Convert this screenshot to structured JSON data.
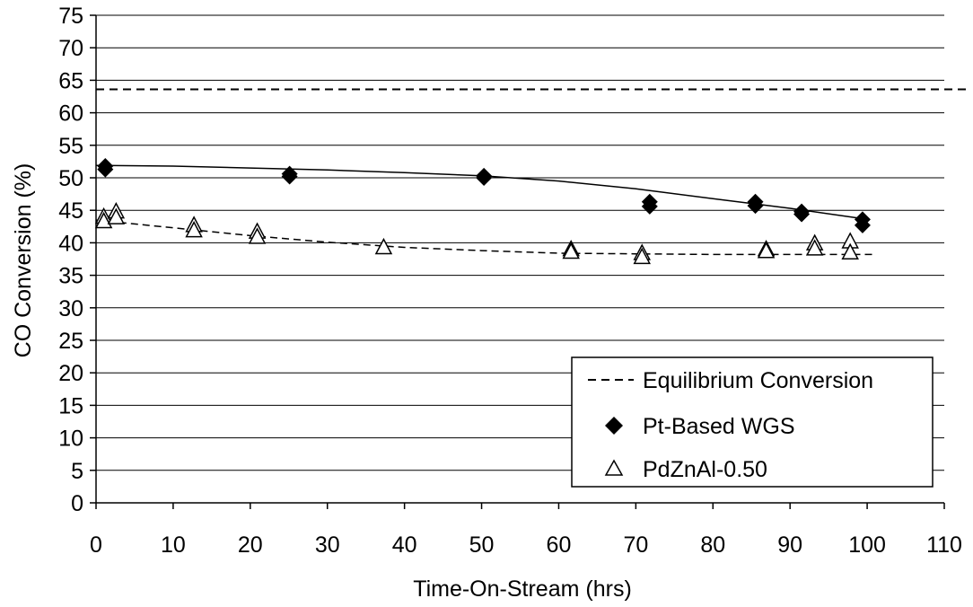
{
  "chart_data": {
    "type": "scatter",
    "xlabel": "Time-On-Stream  (hrs)",
    "ylabel": "CO Conversion (%)",
    "xlim": [
      0,
      110
    ],
    "ylim": [
      0,
      75
    ],
    "x_ticks": [
      0,
      10,
      20,
      30,
      40,
      50,
      60,
      70,
      80,
      90,
      100,
      110
    ],
    "y_ticks": [
      0,
      5,
      10,
      15,
      20,
      25,
      30,
      35,
      40,
      45,
      50,
      55,
      60,
      65,
      70,
      75
    ],
    "grid": "horizontal",
    "legend_position": "bottom-right",
    "equilibrium": {
      "name": "Equilibrium Conversion",
      "value": 63.6,
      "style": "dashed"
    },
    "series": [
      {
        "name": "Pt-Based WGS",
        "marker": "filled-diamond",
        "color": "#000000",
        "points": [
          [
            1.2,
            51.8
          ],
          [
            1.2,
            51.3
          ],
          [
            25.1,
            50.6
          ],
          [
            25.1,
            50.2
          ],
          [
            50.3,
            50.3
          ],
          [
            50.3,
            50.0
          ],
          [
            71.8,
            46.3
          ],
          [
            71.8,
            45.6
          ],
          [
            85.5,
            46.3
          ],
          [
            85.5,
            45.7
          ],
          [
            91.5,
            44.8
          ],
          [
            91.5,
            44.4
          ],
          [
            99.4,
            43.6
          ],
          [
            99.4,
            42.7
          ]
        ],
        "trend": [
          [
            0,
            51.9
          ],
          [
            10,
            51.8
          ],
          [
            20,
            51.5
          ],
          [
            30,
            51.2
          ],
          [
            40,
            50.8
          ],
          [
            50,
            50.3
          ],
          [
            60,
            49.5
          ],
          [
            70,
            48.3
          ],
          [
            80,
            46.8
          ],
          [
            90,
            45.3
          ],
          [
            100,
            43.6
          ]
        ],
        "trend_style": "solid"
      },
      {
        "name": "PdZnAl-0.50",
        "marker": "open-triangle",
        "color": "#000000",
        "points": [
          [
            1.0,
            44.0
          ],
          [
            1.0,
            43.3
          ],
          [
            2.6,
            44.8
          ],
          [
            2.6,
            43.9
          ],
          [
            12.7,
            42.7
          ],
          [
            12.7,
            41.9
          ],
          [
            20.9,
            41.7
          ],
          [
            20.9,
            40.9
          ],
          [
            37.3,
            39.3
          ],
          [
            61.6,
            39.0
          ],
          [
            61.6,
            38.6
          ],
          [
            70.8,
            38.4
          ],
          [
            70.8,
            37.8
          ],
          [
            86.9,
            39.0
          ],
          [
            86.9,
            38.7
          ],
          [
            93.2,
            39.9
          ],
          [
            93.2,
            39.1
          ],
          [
            97.8,
            40.2
          ],
          [
            97.8,
            38.5
          ]
        ],
        "trend": [
          [
            0,
            43.5
          ],
          [
            10,
            42.3
          ],
          [
            20,
            41.1
          ],
          [
            30,
            40.1
          ],
          [
            40,
            39.3
          ],
          [
            50,
            38.8
          ],
          [
            60,
            38.4
          ],
          [
            70,
            38.3
          ],
          [
            80,
            38.2
          ],
          [
            90,
            38.2
          ],
          [
            101,
            38.2
          ]
        ],
        "trend_style": "dashed"
      }
    ]
  }
}
